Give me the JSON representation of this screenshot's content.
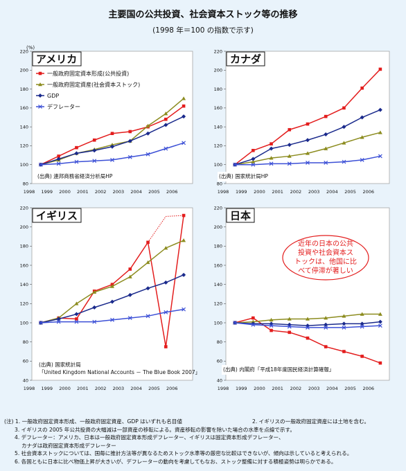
{
  "title": "主要国の公共投資、社会資本ストック等の推移",
  "subtitle": "(1998 年＝100 の指数で示す)",
  "legend_unit": "(%)",
  "series_names": [
    "一般政府固定資本形成(公共投資)",
    "一般政府固定資産(社会資本ストック)",
    "GDP",
    "デフレーター"
  ],
  "colors": {
    "public_investment": "#e31d1d",
    "capital_stock": "#8c8c1f",
    "gdp": "#1a2a8c",
    "deflator": "#3b4fd6"
  },
  "callout": [
    "近年の日本の公共",
    "投資や社会資本ス",
    "トックは、他国に比",
    "べて停滞が著しい"
  ],
  "notes": [
    "(注) 1. 一般政府固定資本形成、一般政府固定資産、GDP はいずれも名目値",
    "2. イギリスの一般政府固定資産には土地を含む。",
    "3. イギリスの 2005 年公共投資の大幅減は一部資産の移転による。資産移転の影響を除いた場合の水準を点線で示す。",
    "4. デフレーター：アメリカ、日本は一般政府固定資本形成デフレーター、イギリスは固定資本形成デフレーター、",
    "カナダは政府固定資本形成デフレーター",
    "5. 社会資本ストックについては、国毎に推計方法等が異なるためストック水準等の厳密な比較はできないが、傾向は示していると考えられる。",
    "6. 各国ともに日本に比べ物価上昇が大きいが、デフレーターの動向を考慮してもなお、ストック整備に対する積極姿勢は明らかである。"
  ],
  "chart_data": [
    {
      "type": "line",
      "country": "アメリカ",
      "source": "(出典) 連邦商務省経済分析局HP",
      "x": [
        "1998",
        "1999",
        "2000",
        "2001",
        "2002",
        "2003",
        "2004",
        "2005",
        "2006"
      ],
      "ylim": [
        80,
        220
      ],
      "yticks": [
        80,
        100,
        120,
        140,
        160,
        180,
        200,
        220
      ],
      "series": [
        {
          "name": "一般政府固定資本形成(公共投資)",
          "values": [
            100,
            109,
            118,
            126,
            133,
            135,
            140,
            148,
            162
          ]
        },
        {
          "name": "一般政府固定資産(社会資本ストック)",
          "values": [
            100,
            105,
            112,
            116,
            121,
            125,
            141,
            154,
            170
          ]
        },
        {
          "name": "GDP",
          "values": [
            100,
            106,
            112,
            115,
            119,
            125,
            133,
            142,
            151
          ]
        },
        {
          "name": "デフレーター",
          "values": [
            100,
            101,
            103,
            104,
            105,
            108,
            111,
            117,
            123
          ]
        }
      ]
    },
    {
      "type": "line",
      "country": "カナダ",
      "source": "(出典) 国家統計局HP",
      "x": [
        "1998",
        "1999",
        "2000",
        "2001",
        "2002",
        "2003",
        "2004",
        "2005",
        "2006"
      ],
      "ylim": [
        80,
        220
      ],
      "yticks": [
        80,
        100,
        120,
        140,
        160,
        180,
        200,
        220
      ],
      "series": [
        {
          "name": "一般政府固定資本形成(公共投資)",
          "values": [
            100,
            115,
            122,
            137,
            143,
            151,
            160,
            181,
            201
          ]
        },
        {
          "name": "一般政府固定資産(社会資本ストック)",
          "values": [
            100,
            103,
            107,
            109,
            112,
            117,
            123,
            129,
            134
          ]
        },
        {
          "name": "GDP",
          "values": [
            100,
            106,
            117,
            121,
            126,
            132,
            140,
            150,
            158
          ]
        },
        {
          "name": "デフレーター",
          "values": [
            100,
            100,
            101,
            101,
            102,
            102,
            103,
            105,
            109
          ]
        }
      ]
    },
    {
      "type": "line",
      "country": "イギリス",
      "source": "(出典) 国家統計局",
      "source2": "「United Kingdom National Accounts － The Blue Book 2007」",
      "x": [
        "1998",
        "1999",
        "2000",
        "2001",
        "2002",
        "2003",
        "2004",
        "2005",
        "2006"
      ],
      "ylim": [
        40,
        220
      ],
      "yticks": [
        40,
        60,
        80,
        100,
        120,
        140,
        160,
        180,
        200,
        220
      ],
      "series": [
        {
          "name": "一般政府固定資本形成(公共投資)",
          "values": [
            100,
            105,
            104,
            133,
            140,
            156,
            184,
            75,
            212
          ]
        },
        {
          "name": "一般政府固定資産(社会資本ストック)",
          "values": [
            100,
            105,
            120,
            132,
            138,
            148,
            163,
            178,
            186
          ]
        },
        {
          "name": "GDP",
          "values": [
            100,
            104,
            109,
            116,
            122,
            129,
            136,
            142,
            150
          ]
        },
        {
          "name": "デフレーター",
          "values": [
            100,
            101,
            101,
            101,
            103,
            105,
            107,
            111,
            114
          ]
        }
      ],
      "adjusted_2005_public_investment": 211
    },
    {
      "type": "line",
      "country": "日本",
      "source": "(出典) 内閣府「平成18年度国民経済計算確報」",
      "x": [
        "1998",
        "1999",
        "2000",
        "2001",
        "2002",
        "2003",
        "2004",
        "2005",
        "2006"
      ],
      "ylim": [
        40,
        220
      ],
      "yticks": [
        40,
        60,
        80,
        100,
        120,
        140,
        160,
        180,
        200,
        220
      ],
      "series": [
        {
          "name": "一般政府固定資本形成(公共投資)",
          "values": [
            100,
            105,
            92,
            90,
            84,
            75,
            70,
            65,
            58
          ]
        },
        {
          "name": "一般政府固定資産(社会資本ストック)",
          "values": [
            100,
            101,
            103,
            104,
            104,
            105,
            107,
            109,
            109
          ]
        },
        {
          "name": "GDP",
          "values": [
            100,
            99,
            99,
            98,
            97,
            98,
            99,
            99,
            101
          ]
        },
        {
          "name": "デフレーター",
          "values": [
            100,
            98,
            97,
            96,
            95,
            95,
            95,
            96,
            97
          ]
        }
      ]
    }
  ]
}
